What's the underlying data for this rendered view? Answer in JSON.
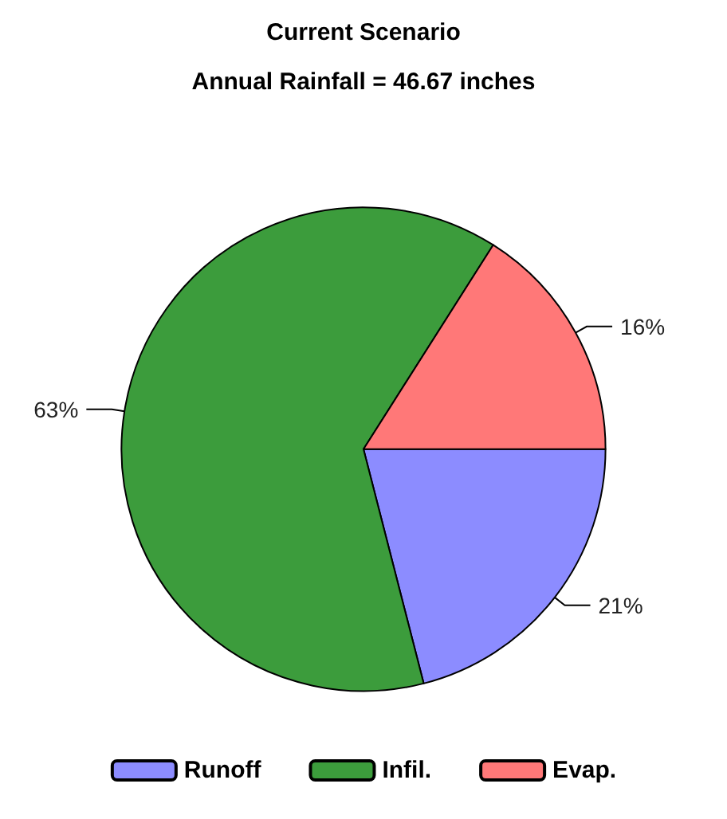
{
  "chart_data": {
    "type": "pie",
    "title": "Current Scenario",
    "subtitle": "Annual Rainfall = 46.67 inches",
    "categories": [
      "Runoff",
      "Infil.",
      "Evap."
    ],
    "values": [
      21,
      63,
      16
    ],
    "value_labels": [
      "21%",
      "63%",
      "16%"
    ],
    "colors": [
      "#8c8cff",
      "#3c9c3c",
      "#ff7878"
    ],
    "legend": "bottom"
  }
}
